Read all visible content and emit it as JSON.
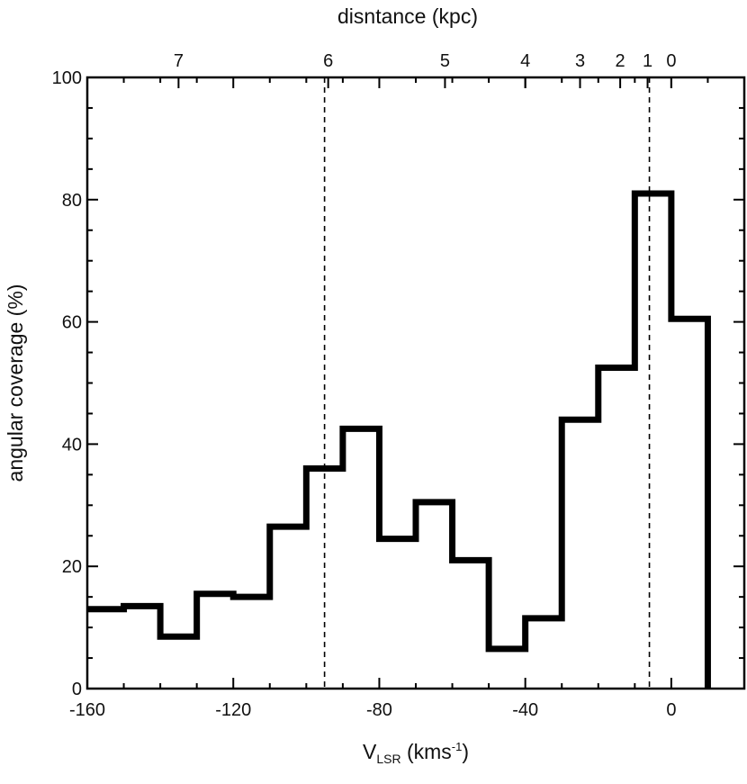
{
  "chart_data": {
    "type": "line",
    "style": "step-histogram",
    "title": "",
    "top_axis_title": "disntance (kpc)",
    "xlabel": {
      "main": "V",
      "subscript": "LSR",
      "units_open": " (kms",
      "units_sup": "-1",
      "units_close": ")"
    },
    "ylabel": "angular coverage (%)",
    "xlim": [
      -160,
      20
    ],
    "ylim": [
      0,
      100
    ],
    "x_ticks": [
      -160,
      -120,
      -80,
      -40,
      0
    ],
    "x_tick_labels": [
      "-160",
      "-120",
      "-80",
      "-40",
      "0"
    ],
    "y_ticks": [
      0,
      20,
      40,
      60,
      80,
      100
    ],
    "y_tick_labels": [
      "0",
      "20",
      "40",
      "60",
      "80",
      "100"
    ],
    "top_ticks": [
      {
        "label": "7",
        "x": -135
      },
      {
        "label": "6",
        "x": -94
      },
      {
        "label": "5",
        "x": -62
      },
      {
        "label": "4",
        "x": -40
      },
      {
        "label": "3",
        "x": -25
      },
      {
        "label": "2",
        "x": -14
      },
      {
        "label": "1",
        "x": -6.5
      },
      {
        "label": "0",
        "x": 0
      }
    ],
    "dashed_lines_x": [
      -95,
      -6
    ],
    "series": [
      {
        "bin_edges": [
          -160,
          -150,
          -140,
          -130,
          -120,
          -110,
          -100,
          -90,
          -80,
          -70,
          -60,
          -50,
          -40,
          -30,
          -20,
          -10,
          0,
          10
        ],
        "values": [
          13,
          13.5,
          8.5,
          15.5,
          15,
          26.5,
          36,
          42.5,
          24.5,
          30.5,
          21,
          6.5,
          11.5,
          44,
          52.5,
          81,
          60.5
        ]
      }
    ],
    "grid": false
  }
}
